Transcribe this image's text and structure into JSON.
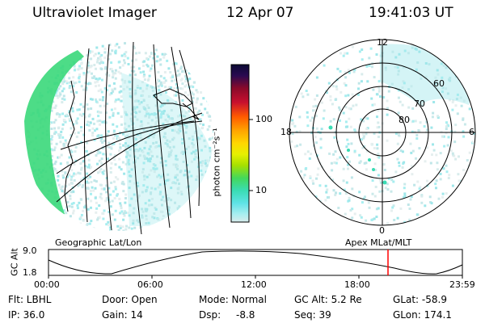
{
  "header": {
    "instrument": "Ultraviolet Imager",
    "date": "12 Apr 07",
    "time": "19:41:03 UT"
  },
  "colorbar": {
    "unit_label": "photon cm⁻²s⁻¹",
    "tick_labels": [
      "100",
      "10"
    ],
    "scale": "log",
    "colors": [
      "#0b0b35",
      "#2a0a50",
      "#8a0a2a",
      "#c8102e",
      "#ff5a00",
      "#ffa500",
      "#ffd700",
      "#e6f000",
      "#a6e000",
      "#44d85a",
      "#3adcb4",
      "#5fe3e6",
      "#a8eef0",
      "#d8ecec"
    ]
  },
  "left_panel": {
    "caption": "Geographic Lat/Lon"
  },
  "right_panel": {
    "caption": "Apex  MLat/MLT",
    "mlt_labels": [
      "12",
      "18",
      "6",
      "0"
    ],
    "mlat_labels": [
      "60",
      "70",
      "80"
    ]
  },
  "altitude_plot": {
    "ylabel": "GC Alt",
    "y_ticks": [
      "9.0",
      "1.8"
    ],
    "x_ticks": [
      "00:00",
      "06:00",
      "12:00",
      "18:00",
      "23:59"
    ],
    "current_time_marker": "19:41",
    "marker_color": "#ff0000"
  },
  "info": {
    "filter": "Flt: LBHL",
    "door": "Door: Open",
    "mode": "Mode: Normal",
    "gc_alt": "GC Alt: 5.2 Re",
    "glat": "GLat: -58.9",
    "ip": "IP: 36.0",
    "gain": "Gain: 14",
    "dsp_label": "Dsp:",
    "dsp_value": "-8.8",
    "seq": "Seq: 39",
    "glon": "GLon: 174.1"
  }
}
